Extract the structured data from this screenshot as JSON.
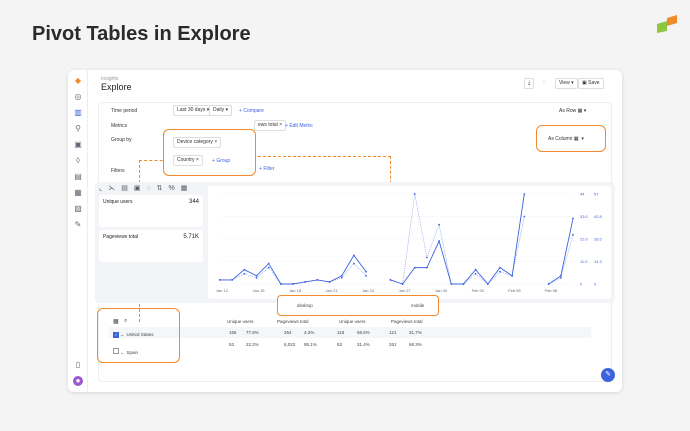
{
  "hero_title": "Pivot Tables in Explore",
  "page": {
    "breadcrumb": "Insights",
    "title": "Explore"
  },
  "toolbar": {
    "view_label": "View",
    "save_label": "Save"
  },
  "query": {
    "time_period_label": "Time period",
    "time_range": "Last 30 days",
    "granularity": "Daily",
    "compare_label": "Compare",
    "metrics_label": "Metrics",
    "metric_2": "ews total",
    "edit_metric_label": "Edit Metric",
    "group_by_label": "Group by",
    "groups": [
      "Device category",
      "Country"
    ],
    "add_group_label": "Group",
    "filters_label": "Filters",
    "filter_label": "Filter",
    "display_modes": [
      "As Row",
      "As Column",
      "As Row"
    ],
    "highlighted_mode": "As Column"
  },
  "metrics": [
    {
      "name": "Unique users",
      "value": "344"
    },
    {
      "name": "Pageviews total",
      "value": "5.71K"
    }
  ],
  "chart_data": {
    "type": "line",
    "x": [
      "Jan 12",
      "Jan 13",
      "Jan 14",
      "Jan 15",
      "Jan 16",
      "Jan 17",
      "Jan 18",
      "Jan 19",
      "Jan 20",
      "Jan 21",
      "Jan 22",
      "Jan 23",
      "Jan 24",
      "Jan 25",
      "Jan 26",
      "Jan 27",
      "Jan 28",
      "Jan 29",
      "Jan 30",
      "Jan 31",
      "Feb 01",
      "Feb 02",
      "Feb 03",
      "Feb 04",
      "Feb 05",
      "Feb 06",
      "Feb 07",
      "Feb 08",
      "Feb 09",
      "Feb 10"
    ],
    "x_tick_labels": [
      "Jan 12",
      "Jan 15",
      "Jan 18",
      "Jan 21",
      "Jan 24",
      "Jan 27",
      "Jan 30",
      "Feb 02",
      "Feb 05",
      "Feb 08"
    ],
    "series": [
      {
        "values": [
          2,
          2,
          7,
          4,
          10,
          0,
          0,
          1,
          2,
          1,
          4,
          14,
          6,
          null,
          2,
          0,
          8,
          8,
          21,
          0,
          0,
          7,
          0,
          8,
          4,
          44,
          null,
          0,
          4,
          32
        ]
      },
      {
        "values": [
          2,
          2,
          5,
          3,
          8,
          0,
          0,
          1,
          2,
          1,
          3,
          10,
          4,
          null,
          2,
          0,
          44,
          13,
          29,
          0,
          0,
          5,
          0,
          6,
          4,
          33,
          null,
          0,
          3,
          24
        ]
      }
    ],
    "y_axis_left_ticks": [
      "44",
      "33.0",
      "22.0",
      "11.0",
      "0"
    ],
    "y_axis_right_ticks": [
      "57",
      "42.8",
      "28.5",
      "14.3",
      "0"
    ],
    "ylim": [
      0,
      44
    ],
    "grid": true,
    "color": "#3b63e0"
  },
  "table": {
    "column_groups": [
      "desktop",
      "mobile"
    ],
    "columns": [
      "Unique users",
      "Pageviews total",
      "Unique users",
      "Pageviews total"
    ],
    "rows": [
      {
        "name": "United States",
        "checked": true,
        "cells": [
          "166",
          "77.8%",
          "264",
          "4.2%",
          "118",
          "68.6%",
          "121",
          "31.7%"
        ]
      },
      {
        "name": "Spain",
        "checked": false,
        "cells": [
          "53",
          "22.2%",
          "6,022",
          "95.1%",
          "53",
          "31.4%",
          "261",
          "68.3%"
        ]
      }
    ]
  },
  "colors": {
    "accent": "#3b63e0",
    "highlight": "#f08a2b"
  }
}
